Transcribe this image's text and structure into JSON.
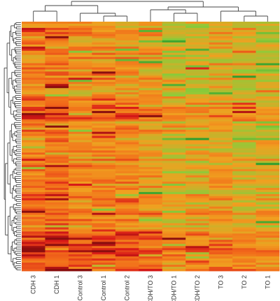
{
  "chart_data": {
    "type": "heatmap",
    "title": "",
    "xlabel": "",
    "ylabel": "",
    "columns": [
      "CDH 3",
      "CDH 1",
      "Control 3",
      "Control 1",
      "Control 2",
      "CDH/TO 3",
      "CDH/TO 1",
      "CDH/TO 2",
      "TO 3",
      "TO 2",
      "TO 1"
    ],
    "row_count": 120,
    "row_dendrogram": true,
    "column_dendrogram": true,
    "legend": "none",
    "grid": false,
    "color_scale": {
      "low": "#2e9e2e",
      "mid_low": "#8ccc3a",
      "mid": "#f0a020",
      "mid_high": "#f26a1a",
      "high": "#d81818",
      "extreme": "#8a0e0e"
    },
    "column_tree": [
      {
        "members": [
          "CDH 3",
          "CDH 1",
          "Control 3",
          "Control 1",
          "Control 2"
        ]
      },
      {
        "members": [
          "CDH/TO 3",
          "CDH/TO 1",
          "CDH/TO 2",
          "TO 3",
          "TO 2",
          "TO 1"
        ]
      }
    ]
  }
}
